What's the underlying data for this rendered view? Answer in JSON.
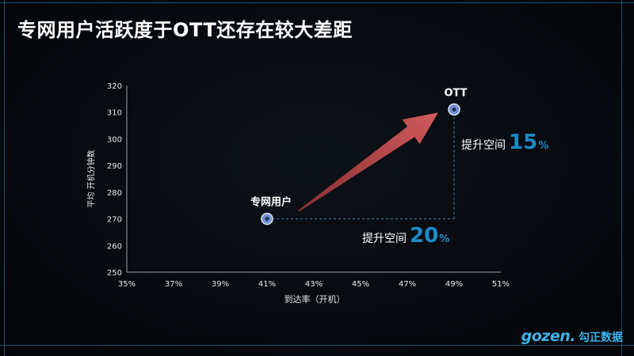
{
  "title": "专网用户活跃度于OTT还存在较大差距",
  "logo": {
    "brand": "gozen.",
    "brand_cn": "勾正数据"
  },
  "colors": {
    "accent_blue": "#1a8cc8",
    "arrow_red": "#c0474a",
    "point_blue": "#6f8fd6",
    "frame": "#1d4f6e"
  },
  "chart_data": {
    "type": "scatter",
    "xlabel": "到达率（开机）",
    "ylabel": "平均 开机分钟数",
    "xlim": [
      35,
      51
    ],
    "ylim": [
      250,
      320
    ],
    "xticks": [
      "35%",
      "37%",
      "39%",
      "41%",
      "43%",
      "45%",
      "47%",
      "49%",
      "51%"
    ],
    "yticks": [
      "250",
      "260",
      "270",
      "280",
      "290",
      "300",
      "310",
      "320"
    ],
    "grid": false,
    "points": [
      {
        "label": "专网用户",
        "x": 41,
        "y": 270
      },
      {
        "label": "OTT",
        "x": 49,
        "y": 311
      }
    ],
    "annotations": [
      {
        "prefix": "提升空间",
        "value": "20",
        "unit": "%"
      },
      {
        "prefix": "提升空间",
        "value": "15",
        "unit": "%"
      }
    ]
  }
}
